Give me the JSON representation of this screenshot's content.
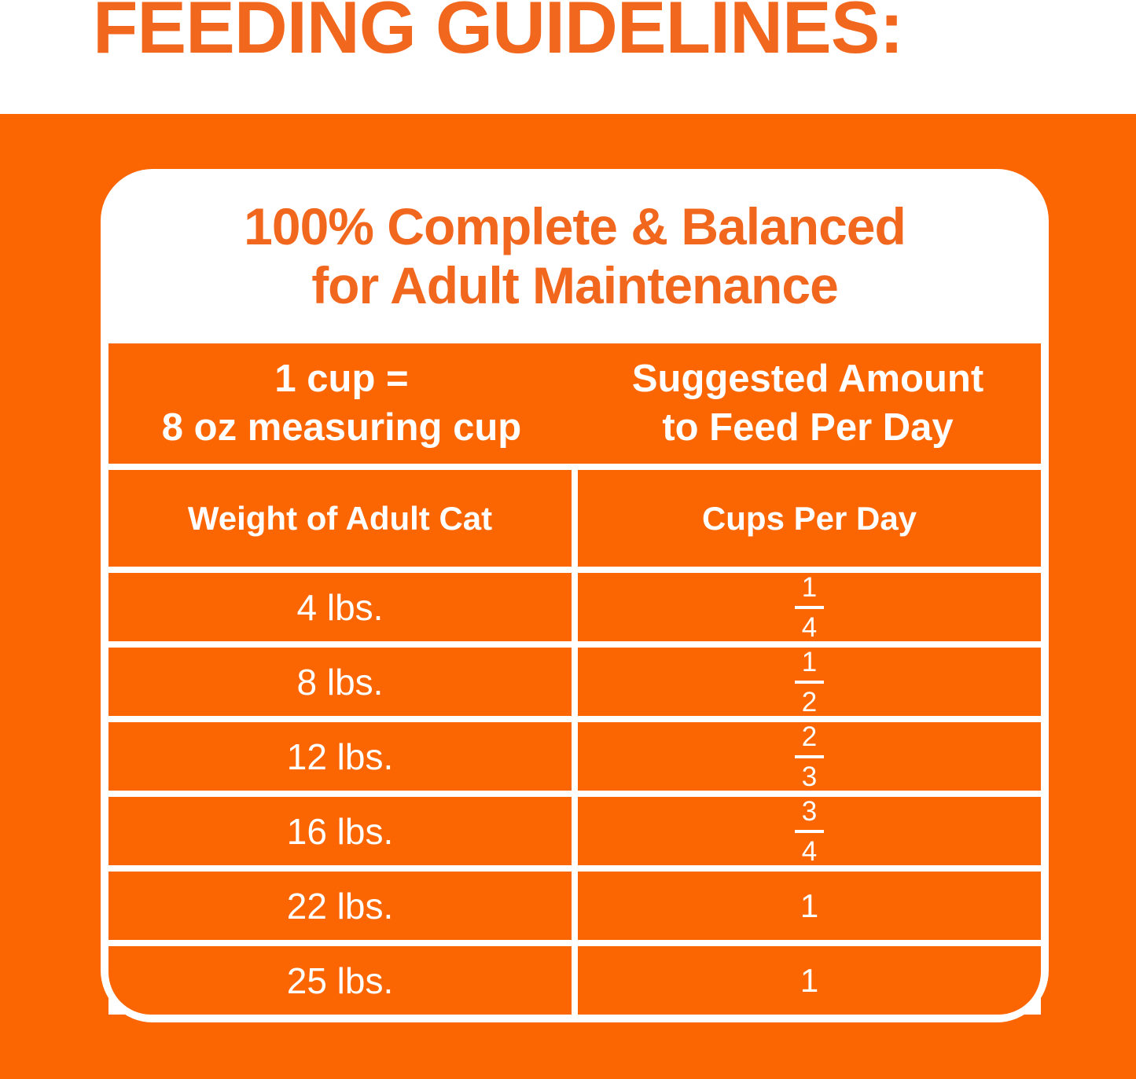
{
  "colors": {
    "background_orange": "#FB6602",
    "accent_text_orange": "#F2671E",
    "grid_line_white": "#FFFFFF",
    "table_text_white": "#FFFFFF"
  },
  "page_title": "FEEDING GUIDELINES:",
  "card": {
    "title_line1": "100% Complete & Balanced",
    "title_line2": "for Adult Maintenance",
    "header": {
      "left_line1": "1 cup =",
      "left_line2": "8 oz measuring cup",
      "right_line1": "Suggested Amount",
      "right_line2": "to Feed Per Day"
    },
    "columns": {
      "left": "Weight of Adult Cat",
      "right": "Cups Per Day"
    },
    "rows": [
      {
        "weight": "4 lbs.",
        "cups_numerator": "1",
        "cups_denominator": "4"
      },
      {
        "weight": "8 lbs.",
        "cups_numerator": "1",
        "cups_denominator": "2"
      },
      {
        "weight": "12 lbs.",
        "cups_numerator": "2",
        "cups_denominator": "3"
      },
      {
        "weight": "16 lbs.",
        "cups_numerator": "3",
        "cups_denominator": "4"
      },
      {
        "weight": "22 lbs.",
        "cups": "1"
      },
      {
        "weight": "25 lbs.",
        "cups": "1"
      }
    ]
  }
}
